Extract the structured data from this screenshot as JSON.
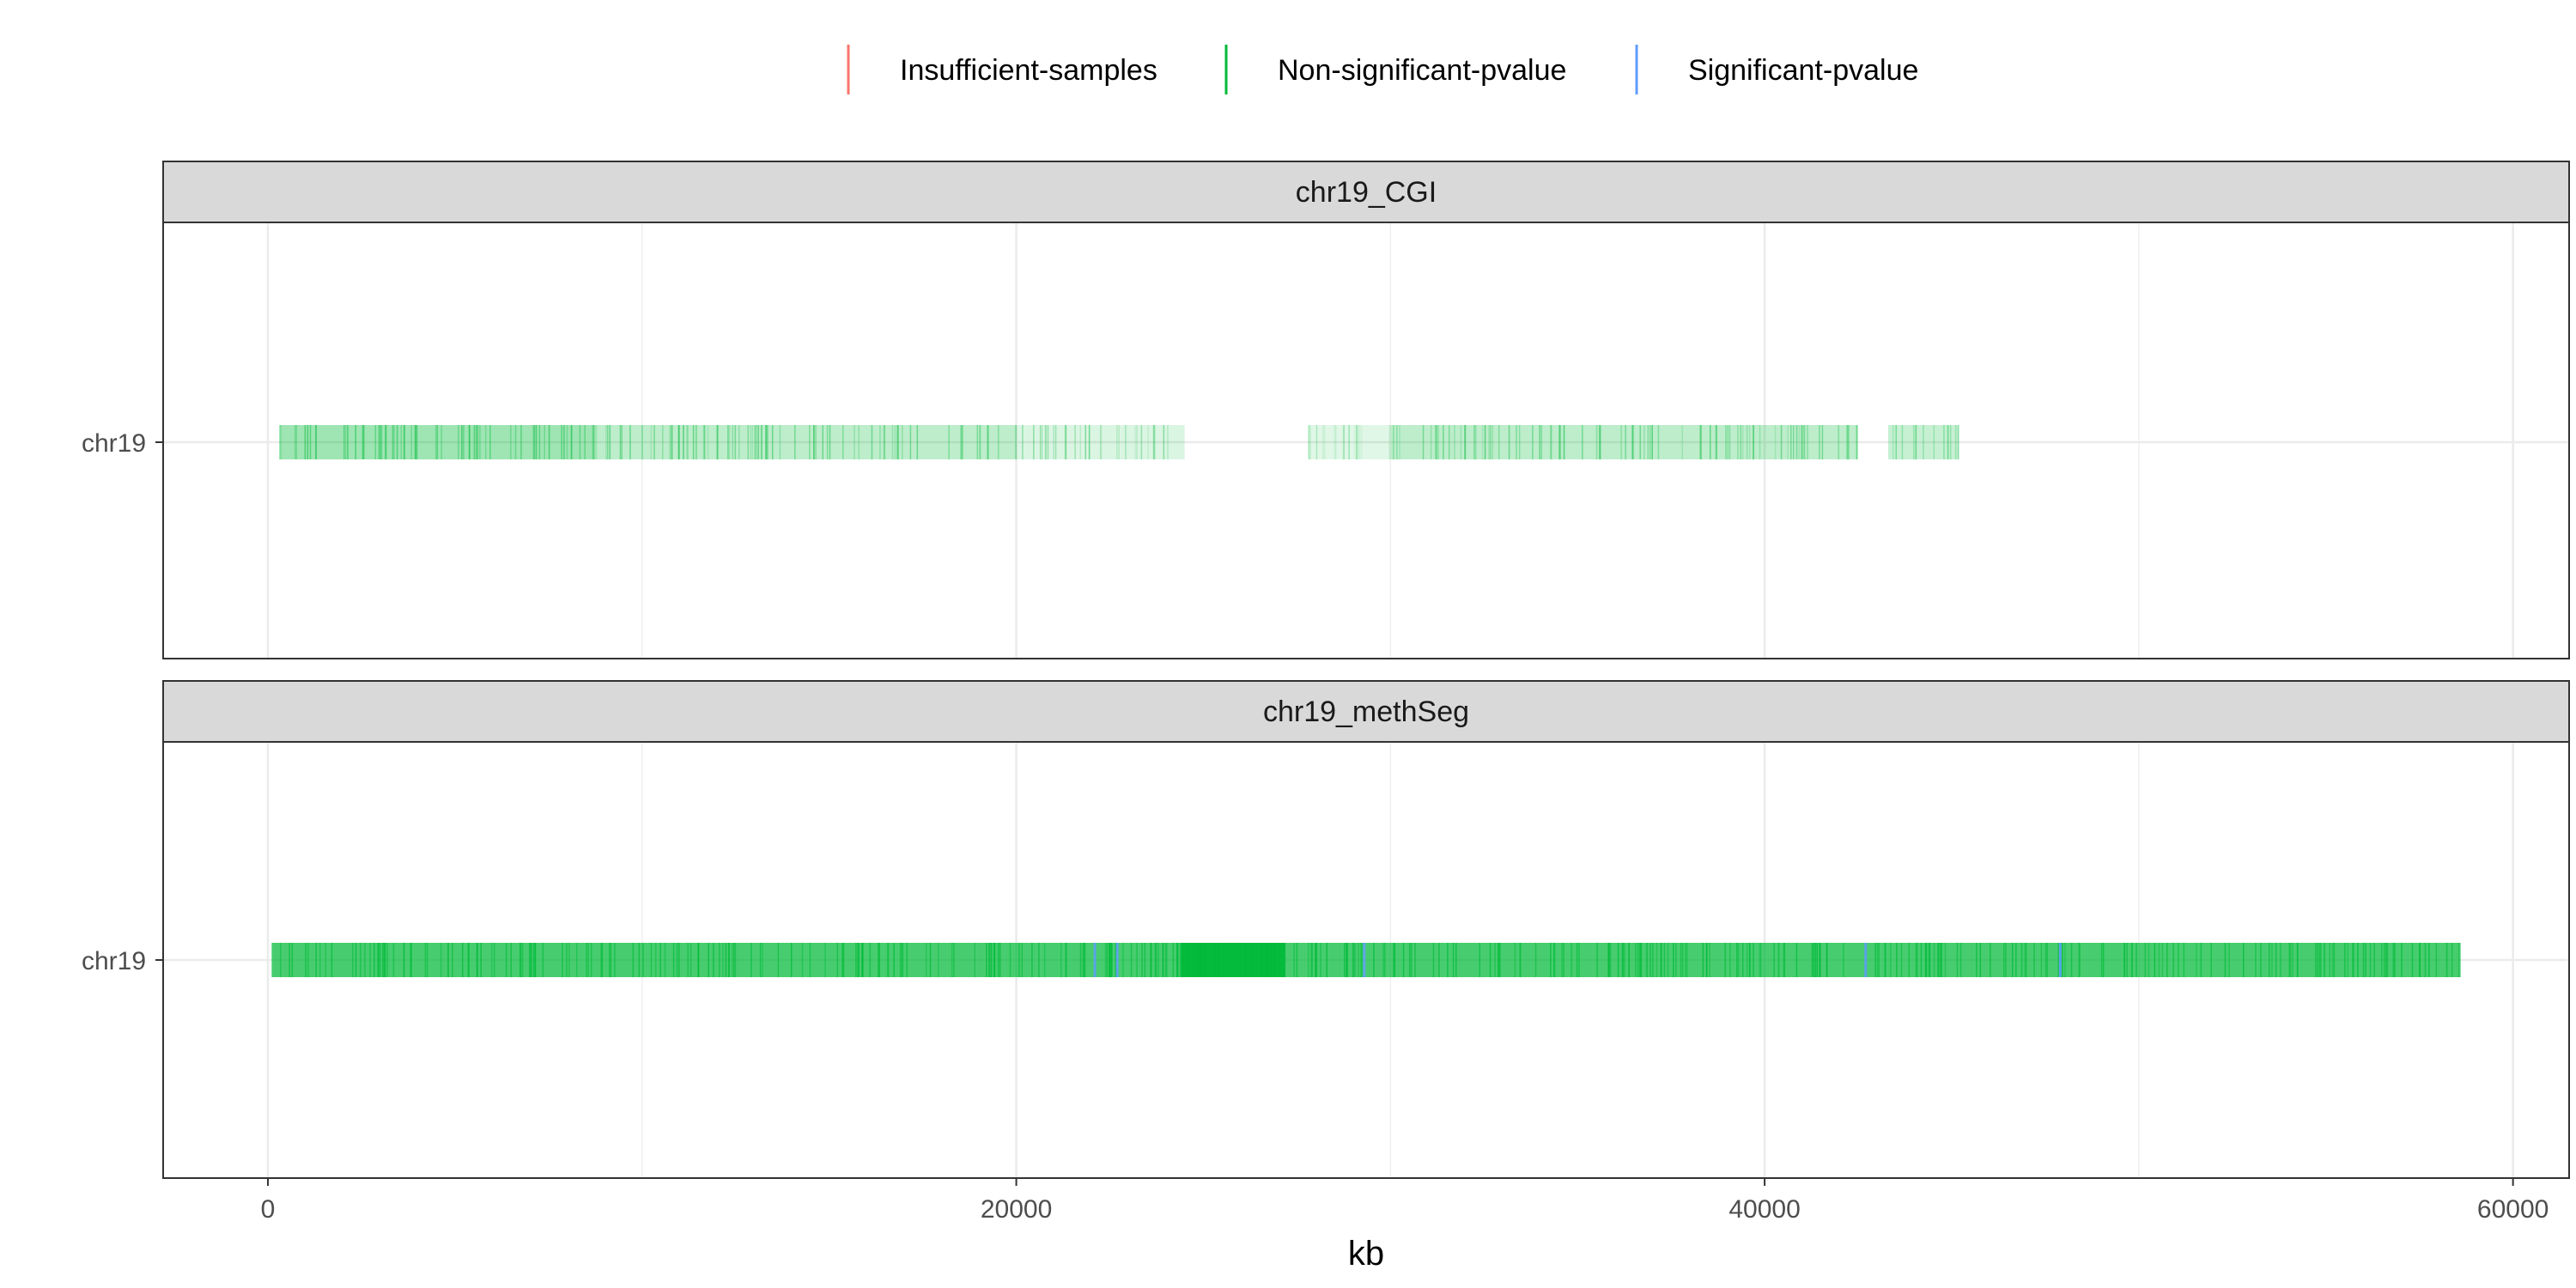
{
  "chart_data": {
    "type": "segment-track",
    "title": "",
    "xlabel": "kb",
    "ylabel": "",
    "xlim": [
      -2800,
      61500
    ],
    "x_ticks": [
      0,
      20000,
      40000,
      60000
    ],
    "x_tick_labels": [
      "0",
      "20000",
      "40000",
      "60000"
    ],
    "x_minor_ticks": [
      10000,
      30000,
      50000
    ],
    "grid": true,
    "legend_position": "top",
    "legend": [
      {
        "name": "Insufficient-samples",
        "color": "#F8766D"
      },
      {
        "name": "Non-significant-pvalue",
        "color": "#00BA38"
      },
      {
        "name": "Significant-pvalue",
        "color": "#619CFF"
      }
    ],
    "panels": [
      {
        "strip_label": "chr19_CGI",
        "y_label": "chr19",
        "coverage": [
          {
            "start": 300,
            "end": 8800,
            "intensity": 0.38,
            "category": "Non-significant-pvalue"
          },
          {
            "start": 8800,
            "end": 20000,
            "intensity": 0.26,
            "category": "Non-significant-pvalue"
          },
          {
            "start": 20000,
            "end": 24500,
            "intensity": 0.14,
            "category": "Non-significant-pvalue"
          },
          {
            "start": 27800,
            "end": 30000,
            "intensity": 0.12,
            "category": "Non-significant-pvalue"
          },
          {
            "start": 30000,
            "end": 42500,
            "intensity": 0.26,
            "category": "Non-significant-pvalue"
          },
          {
            "start": 43300,
            "end": 45200,
            "intensity": 0.22,
            "category": "Non-significant-pvalue"
          }
        ],
        "highlights": []
      },
      {
        "strip_label": "chr19_methSeg",
        "y_label": "chr19",
        "coverage": [
          {
            "start": 100,
            "end": 24400,
            "intensity": 0.72,
            "category": "Non-significant-pvalue"
          },
          {
            "start": 24400,
            "end": 27200,
            "intensity": 0.98,
            "category": "Non-significant-pvalue"
          },
          {
            "start": 27200,
            "end": 58600,
            "intensity": 0.72,
            "category": "Non-significant-pvalue"
          }
        ],
        "highlights": [
          {
            "x": 22100,
            "category": "Significant-pvalue"
          },
          {
            "x": 22700,
            "category": "Significant-pvalue"
          },
          {
            "x": 29300,
            "category": "Significant-pvalue"
          },
          {
            "x": 42700,
            "category": "Significant-pvalue"
          },
          {
            "x": 47900,
            "category": "Significant-pvalue"
          }
        ]
      }
    ]
  }
}
